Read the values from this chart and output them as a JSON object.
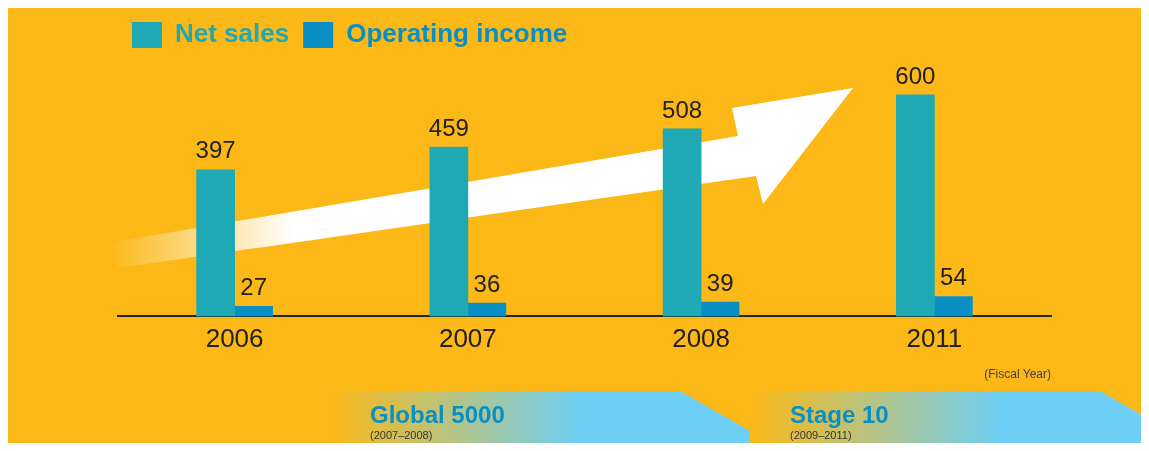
{
  "chart_data": {
    "type": "bar",
    "categories": [
      "2006",
      "2007",
      "2008",
      "2011"
    ],
    "series": [
      {
        "name": "Net sales",
        "color": "#1fa9b5",
        "values": [
          397,
          459,
          508,
          600
        ]
      },
      {
        "name": "Operating income",
        "color": "#0a8fc4",
        "values": [
          27,
          36,
          39,
          54
        ]
      }
    ],
    "tick_labels": "x",
    "data_labels": true,
    "legend": "top left",
    "grid": false,
    "xlabel": "(Fiscal Year)",
    "annotations": [
      "Global 5000",
      "(2007–2008)",
      "Stage 10",
      "(2009–2011)"
    ]
  }
}
